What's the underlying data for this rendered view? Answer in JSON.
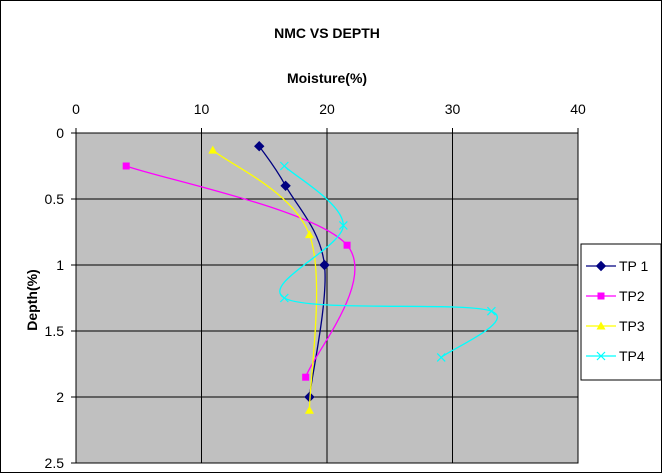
{
  "chart_data": {
    "type": "scatter",
    "title": "NMC VS DEPTH",
    "xlabel": "Moisture(%)",
    "ylabel": "Depth(%)",
    "xlim": [
      0,
      40
    ],
    "ylim": [
      0,
      2.5
    ],
    "x_ticks": [
      "0",
      "10",
      "20",
      "30",
      "40"
    ],
    "y_ticks": [
      "0",
      "0.5",
      "1",
      "1.5",
      "2",
      "2.5"
    ],
    "x_axis_position": "top",
    "y_axis_inverted": true,
    "grid": true,
    "plot_background": "#c0c0c0",
    "legend_position": "right",
    "series": [
      {
        "name": "TP 1",
        "color": "#000080",
        "marker": "diamond",
        "points": [
          [
            14.6,
            0.1
          ],
          [
            16.7,
            0.4
          ],
          [
            19.8,
            1.0
          ],
          [
            18.6,
            2.0
          ]
        ]
      },
      {
        "name": "TP2",
        "color": "#ff00ff",
        "marker": "square",
        "points": [
          [
            4.0,
            0.25
          ],
          [
            21.6,
            0.85
          ],
          [
            18.3,
            1.85
          ]
        ]
      },
      {
        "name": "TP3",
        "color": "#ffff00",
        "marker": "triangle",
        "points": [
          [
            10.9,
            0.13
          ],
          [
            18.6,
            0.77
          ],
          [
            18.6,
            2.1
          ]
        ]
      },
      {
        "name": "TP4",
        "color": "#00ffff",
        "marker": "x",
        "points": [
          [
            16.6,
            0.25
          ],
          [
            21.3,
            0.7
          ],
          [
            16.6,
            1.25
          ],
          [
            33.1,
            1.35
          ],
          [
            29.1,
            1.7
          ]
        ]
      }
    ]
  }
}
